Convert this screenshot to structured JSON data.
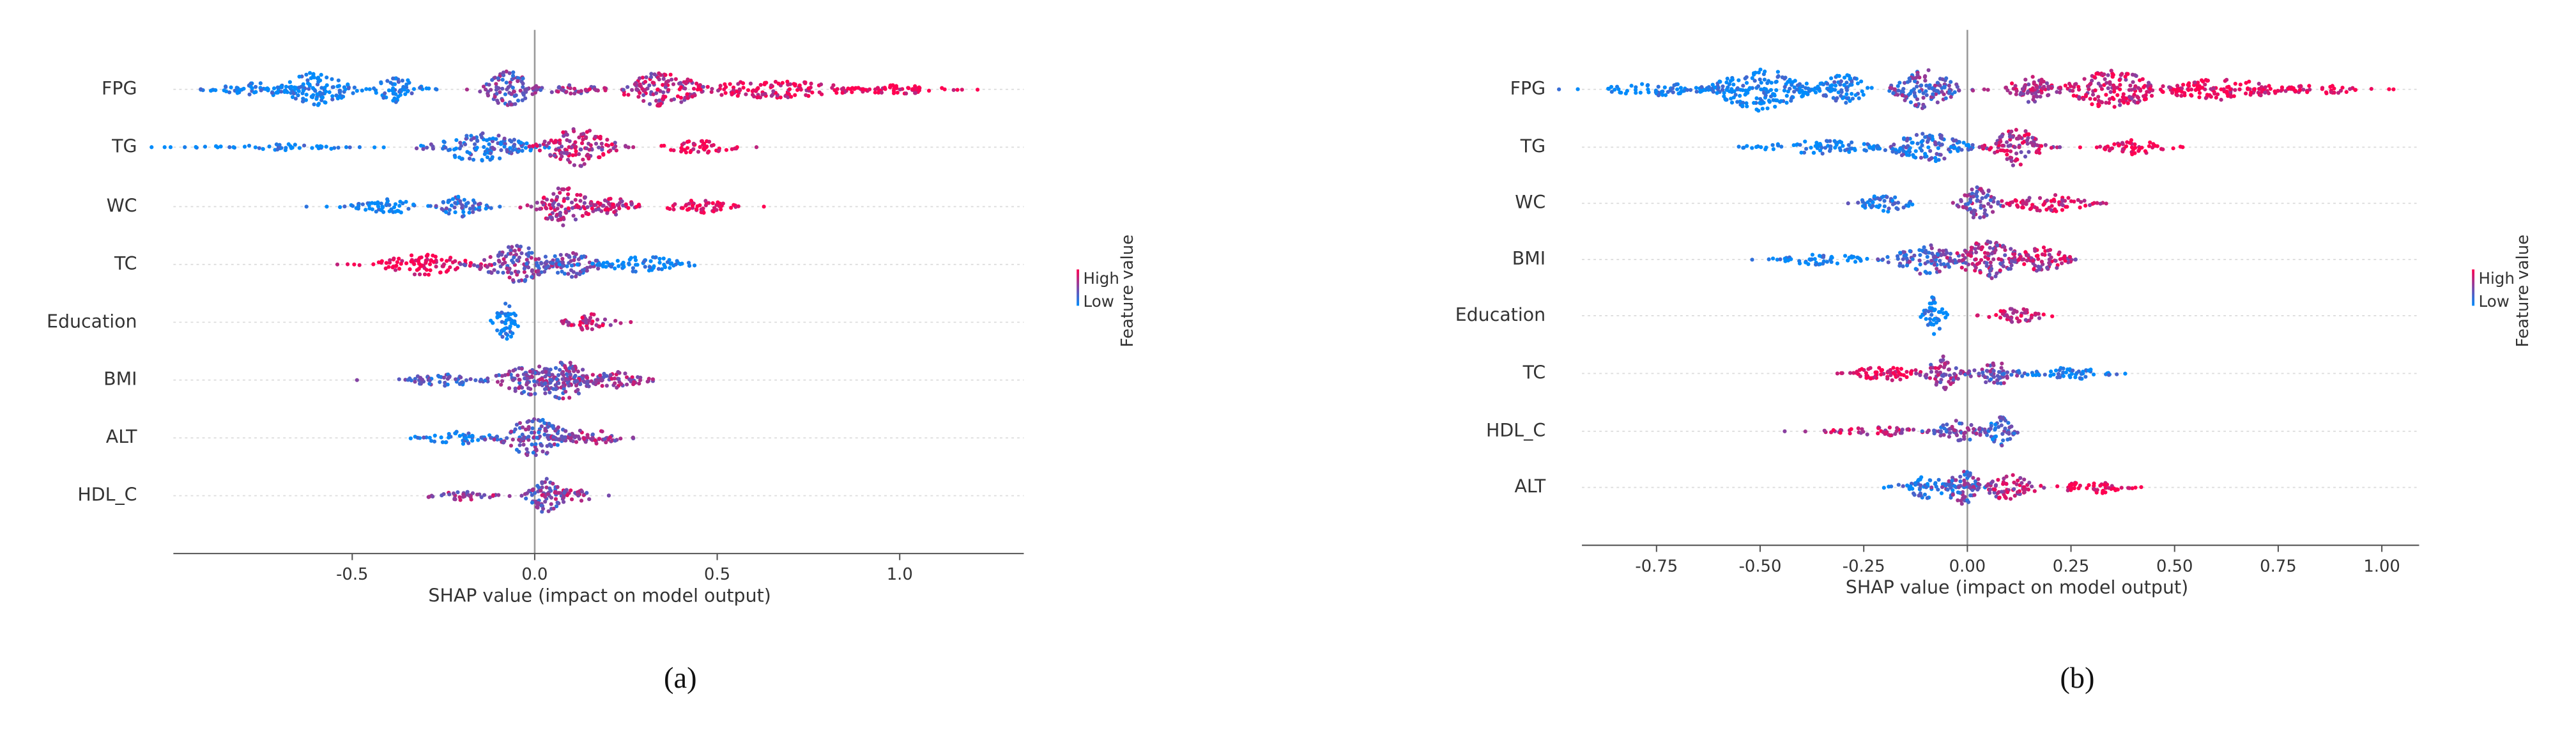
{
  "chart_data": [
    {
      "type": "beeswarm",
      "caption": "(a)",
      "xlabel": "SHAP value (impact on model output)",
      "xlim": [
        -0.99,
        1.34
      ],
      "xticks": [
        -0.5,
        {
          "value": 0,
          "label": "0.0"
        },
        0.5,
        {
          "value": 1,
          "label": "1.0"
        }
      ],
      "colorbar": {
        "title": "Feature value",
        "high": "High",
        "low": "Low",
        "low_color": "#008bfb",
        "high_color": "#ff0051"
      },
      "grid": true,
      "features": [
        {
          "name": "FPG",
          "clusters": [
            {
              "x": -0.75,
              "spread": 0.08,
              "density": 0.3,
              "feature_value": 0
            },
            {
              "x": -0.6,
              "spread": 0.06,
              "density": 0.8,
              "feature_value": 0
            },
            {
              "x": -0.38,
              "spread": 0.04,
              "density": 0.6,
              "feature_value": 0.05
            },
            {
              "x": -0.07,
              "spread": 0.04,
              "density": 0.9,
              "feature_value": 0.45
            },
            {
              "x": 0.1,
              "spread": 0.06,
              "density": 0.2,
              "feature_value": 0.55
            },
            {
              "x": 0.35,
              "spread": 0.07,
              "density": 0.8,
              "feature_value": 0.7
            },
            {
              "x": 0.65,
              "spread": 0.15,
              "density": 0.4,
              "feature_value": 0.9
            },
            {
              "x": 1.0,
              "spread": 0.1,
              "density": 0.2,
              "feature_value": 1
            }
          ]
        },
        {
          "name": "TG",
          "clusters": [
            {
              "x": -0.7,
              "spread": 0.12,
              "density": 0.15,
              "feature_value": 0
            },
            {
              "x": -0.15,
              "spread": 0.08,
              "density": 0.7,
              "feature_value": 0.2
            },
            {
              "x": 0.12,
              "spread": 0.06,
              "density": 0.9,
              "feature_value": 0.7
            },
            {
              "x": 0.45,
              "spread": 0.06,
              "density": 0.3,
              "feature_value": 1
            }
          ]
        },
        {
          "name": "WC",
          "clusters": [
            {
              "x": -0.4,
              "spread": 0.06,
              "density": 0.35,
              "feature_value": 0
            },
            {
              "x": -0.2,
              "spread": 0.04,
              "density": 0.5,
              "feature_value": 0.2
            },
            {
              "x": 0.08,
              "spread": 0.05,
              "density": 0.9,
              "feature_value": 0.7
            },
            {
              "x": 0.22,
              "spread": 0.04,
              "density": 0.4,
              "feature_value": 0.75
            },
            {
              "x": 0.45,
              "spread": 0.06,
              "density": 0.3,
              "feature_value": 1
            }
          ]
        },
        {
          "name": "TC",
          "clusters": [
            {
              "x": -0.3,
              "spread": 0.08,
              "density": 0.5,
              "feature_value": 1
            },
            {
              "x": -0.05,
              "spread": 0.06,
              "density": 0.9,
              "feature_value": 0.5
            },
            {
              "x": 0.1,
              "spread": 0.05,
              "density": 0.6,
              "feature_value": 0.4
            },
            {
              "x": 0.3,
              "spread": 0.07,
              "density": 0.4,
              "feature_value": 0
            }
          ]
        },
        {
          "name": "Education",
          "clusters": [
            {
              "x": -0.08,
              "spread": 0.02,
              "density": 0.9,
              "feature_value": 0
            },
            {
              "x": 0.15,
              "spread": 0.04,
              "density": 0.4,
              "feature_value": 0.8
            }
          ]
        },
        {
          "name": "BMI",
          "clusters": [
            {
              "x": -0.25,
              "spread": 0.07,
              "density": 0.3,
              "feature_value": 0.3
            },
            {
              "x": 0.0,
              "spread": 0.07,
              "density": 0.7,
              "feature_value": 0.45
            },
            {
              "x": 0.08,
              "spread": 0.05,
              "density": 0.9,
              "feature_value": 0.5
            },
            {
              "x": 0.22,
              "spread": 0.05,
              "density": 0.4,
              "feature_value": 0.6
            }
          ]
        },
        {
          "name": "ALT",
          "clusters": [
            {
              "x": -0.2,
              "spread": 0.07,
              "density": 0.3,
              "feature_value": 0.1
            },
            {
              "x": 0.0,
              "spread": 0.06,
              "density": 0.9,
              "feature_value": 0.4
            },
            {
              "x": 0.15,
              "spread": 0.05,
              "density": 0.4,
              "feature_value": 0.6
            }
          ]
        },
        {
          "name": "HDL_C",
          "clusters": [
            {
              "x": -0.2,
              "spread": 0.06,
              "density": 0.2,
              "feature_value": 0.6
            },
            {
              "x": 0.03,
              "spread": 0.03,
              "density": 0.8,
              "feature_value": 0.4
            },
            {
              "x": 0.1,
              "spread": 0.04,
              "density": 0.35,
              "feature_value": 0.6
            }
          ]
        }
      ]
    },
    {
      "type": "beeswarm",
      "caption": "(b)",
      "xlabel": "SHAP value (impact on model output)",
      "xlim": [
        -0.93,
        1.09
      ],
      "xticks": [
        -0.75,
        {
          "value": -0.5,
          "label": "-0.50"
        },
        -0.25,
        {
          "value": 0,
          "label": "0.00"
        },
        0.25,
        {
          "value": 0.5,
          "label": "0.50"
        },
        0.75,
        {
          "value": 1,
          "label": "1.00"
        }
      ],
      "colorbar": {
        "title": "Feature value",
        "high": "High",
        "low": "Low",
        "low_color": "#008bfb",
        "high_color": "#ff0051"
      },
      "grid": true,
      "features": [
        {
          "name": "FPG",
          "clusters": [
            {
              "x": -0.75,
              "spread": 0.08,
              "density": 0.3,
              "feature_value": 0
            },
            {
              "x": -0.5,
              "spread": 0.07,
              "density": 1,
              "feature_value": 0
            },
            {
              "x": -0.3,
              "spread": 0.04,
              "density": 0.7,
              "feature_value": 0.05
            },
            {
              "x": -0.1,
              "spread": 0.05,
              "density": 0.9,
              "feature_value": 0.4
            },
            {
              "x": 0.15,
              "spread": 0.04,
              "density": 0.6,
              "feature_value": 0.7
            },
            {
              "x": 0.35,
              "spread": 0.07,
              "density": 0.9,
              "feature_value": 0.8
            },
            {
              "x": 0.6,
              "spread": 0.1,
              "density": 0.5,
              "feature_value": 0.95
            },
            {
              "x": 0.85,
              "spread": 0.07,
              "density": 0.2,
              "feature_value": 1
            }
          ]
        },
        {
          "name": "TG",
          "clusters": [
            {
              "x": -0.35,
              "spread": 0.1,
              "density": 0.3,
              "feature_value": 0
            },
            {
              "x": -0.1,
              "spread": 0.06,
              "density": 0.7,
              "feature_value": 0.2
            },
            {
              "x": 0.12,
              "spread": 0.04,
              "density": 0.9,
              "feature_value": 0.7
            },
            {
              "x": 0.4,
              "spread": 0.05,
              "density": 0.35,
              "feature_value": 1
            }
          ]
        },
        {
          "name": "WC",
          "clusters": [
            {
              "x": -0.2,
              "spread": 0.04,
              "density": 0.4,
              "feature_value": 0.1
            },
            {
              "x": 0.03,
              "spread": 0.03,
              "density": 0.8,
              "feature_value": 0.5
            },
            {
              "x": 0.2,
              "spread": 0.06,
              "density": 0.4,
              "feature_value": 0.8
            }
          ]
        },
        {
          "name": "BMI",
          "clusters": [
            {
              "x": -0.35,
              "spread": 0.07,
              "density": 0.25,
              "feature_value": 0
            },
            {
              "x": -0.1,
              "spread": 0.05,
              "density": 0.7,
              "feature_value": 0.35
            },
            {
              "x": 0.05,
              "spread": 0.05,
              "density": 0.9,
              "feature_value": 0.6
            },
            {
              "x": 0.18,
              "spread": 0.04,
              "density": 0.6,
              "feature_value": 0.7
            }
          ]
        },
        {
          "name": "Education",
          "clusters": [
            {
              "x": -0.08,
              "spread": 0.015,
              "density": 0.9,
              "feature_value": 0
            },
            {
              "x": 0.12,
              "spread": 0.04,
              "density": 0.35,
              "feature_value": 0.8
            }
          ]
        },
        {
          "name": "TC",
          "clusters": [
            {
              "x": -0.2,
              "spread": 0.06,
              "density": 0.35,
              "feature_value": 1
            },
            {
              "x": -0.06,
              "spread": 0.025,
              "density": 0.8,
              "feature_value": 0.6
            },
            {
              "x": 0.07,
              "spread": 0.04,
              "density": 0.5,
              "feature_value": 0.4
            },
            {
              "x": 0.25,
              "spread": 0.06,
              "density": 0.3,
              "feature_value": 0
            }
          ]
        },
        {
          "name": "HDL_C",
          "clusters": [
            {
              "x": -0.2,
              "spread": 0.08,
              "density": 0.2,
              "feature_value": 0.8
            },
            {
              "x": -0.02,
              "spread": 0.04,
              "density": 0.5,
              "feature_value": 0.4
            },
            {
              "x": 0.08,
              "spread": 0.02,
              "density": 0.7,
              "feature_value": 0.2
            }
          ]
        },
        {
          "name": "ALT",
          "clusters": [
            {
              "x": -0.1,
              "spread": 0.04,
              "density": 0.5,
              "feature_value": 0.1
            },
            {
              "x": -0.01,
              "spread": 0.03,
              "density": 0.8,
              "feature_value": 0.4
            },
            {
              "x": 0.1,
              "spread": 0.04,
              "density": 0.6,
              "feature_value": 0.7
            },
            {
              "x": 0.3,
              "spread": 0.05,
              "density": 0.3,
              "feature_value": 1
            }
          ]
        }
      ]
    }
  ]
}
